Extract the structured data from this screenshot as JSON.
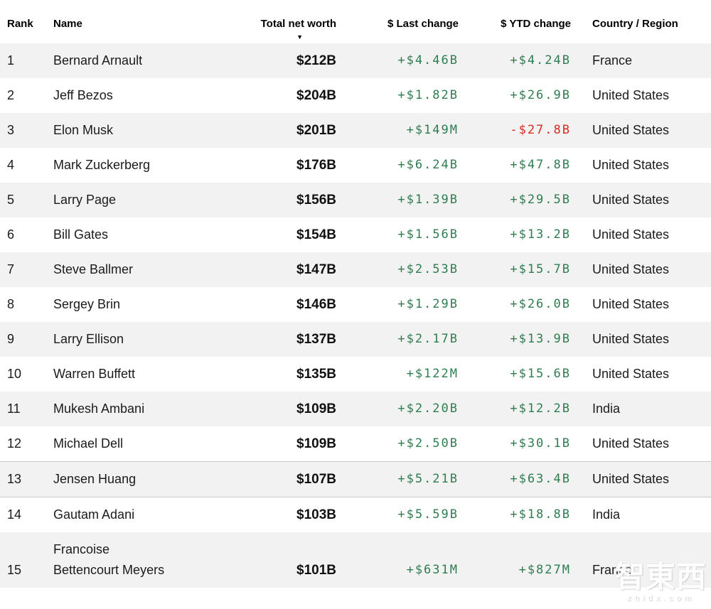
{
  "table": {
    "columns": [
      {
        "label": "Rank"
      },
      {
        "label": "Name"
      },
      {
        "label": "Total net worth"
      },
      {
        "label": "$ Last change"
      },
      {
        "label": "$ YTD change"
      },
      {
        "label": "Country / Region"
      }
    ],
    "sort_icon": "▼",
    "sorted_column": "Total net worth",
    "highlighted_rank": "13",
    "rows": [
      {
        "rank": "1",
        "name": "Bernard Arnault",
        "total_net_worth": "$212B",
        "last_change": "+$4.46B",
        "ytd_change": "+$4.24B",
        "country": "France"
      },
      {
        "rank": "2",
        "name": "Jeff Bezos",
        "total_net_worth": "$204B",
        "last_change": "+$1.82B",
        "ytd_change": "+$26.9B",
        "country": "United States"
      },
      {
        "rank": "3",
        "name": "Elon Musk",
        "total_net_worth": "$201B",
        "last_change": "+$149M",
        "ytd_change": "-$27.8B",
        "country": "United States"
      },
      {
        "rank": "4",
        "name": "Mark Zuckerberg",
        "total_net_worth": "$176B",
        "last_change": "+$6.24B",
        "ytd_change": "+$47.8B",
        "country": "United States"
      },
      {
        "rank": "5",
        "name": "Larry Page",
        "total_net_worth": "$156B",
        "last_change": "+$1.39B",
        "ytd_change": "+$29.5B",
        "country": "United States"
      },
      {
        "rank": "6",
        "name": "Bill Gates",
        "total_net_worth": "$154B",
        "last_change": "+$1.56B",
        "ytd_change": "+$13.2B",
        "country": "United States"
      },
      {
        "rank": "7",
        "name": "Steve Ballmer",
        "total_net_worth": "$147B",
        "last_change": "+$2.53B",
        "ytd_change": "+$15.7B",
        "country": "United States"
      },
      {
        "rank": "8",
        "name": "Sergey Brin",
        "total_net_worth": "$146B",
        "last_change": "+$1.29B",
        "ytd_change": "+$26.0B",
        "country": "United States"
      },
      {
        "rank": "9",
        "name": "Larry Ellison",
        "total_net_worth": "$137B",
        "last_change": "+$2.17B",
        "ytd_change": "+$13.9B",
        "country": "United States"
      },
      {
        "rank": "10",
        "name": "Warren Buffett",
        "total_net_worth": "$135B",
        "last_change": "+$122M",
        "ytd_change": "+$15.6B",
        "country": "United States"
      },
      {
        "rank": "11",
        "name": "Mukesh Ambani",
        "total_net_worth": "$109B",
        "last_change": "+$2.20B",
        "ytd_change": "+$12.2B",
        "country": "India"
      },
      {
        "rank": "12",
        "name": "Michael Dell",
        "total_net_worth": "$109B",
        "last_change": "+$2.50B",
        "ytd_change": "+$30.1B",
        "country": "United States"
      },
      {
        "rank": "13",
        "name": "Jensen Huang",
        "total_net_worth": "$107B",
        "last_change": "+$5.21B",
        "ytd_change": "+$63.4B",
        "country": "United States"
      },
      {
        "rank": "14",
        "name": "Gautam Adani",
        "total_net_worth": "$103B",
        "last_change": "+$5.59B",
        "ytd_change": "+$18.8B",
        "country": "India"
      },
      {
        "rank": "15",
        "name": "Francoise Bettencourt Meyers",
        "total_net_worth": "$101B",
        "last_change": "+$631M",
        "ytd_change": "+$827M",
        "country": "France"
      }
    ]
  },
  "colors": {
    "positive": "#2e7d51",
    "negative": "#d62b1e",
    "row_stripe": "#f2f2f2",
    "highlight_border": "#c9c9c9"
  },
  "watermark": {
    "text": "智東西",
    "subtext": "zhidx.com"
  }
}
